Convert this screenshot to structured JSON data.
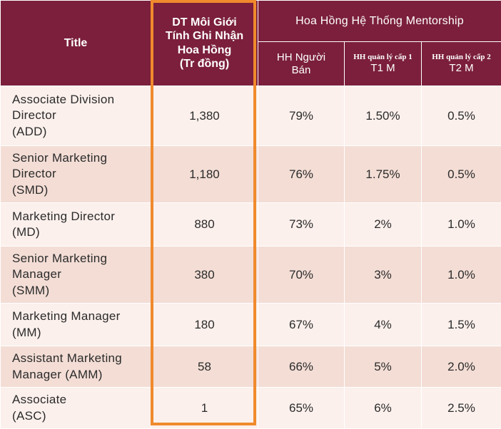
{
  "header": {
    "title": "Title",
    "dt_lines": [
      "DT Môi Giới",
      "Tính Ghi Nhận",
      "Hoa Hồng",
      "(Tr đồng)"
    ],
    "group": "Hoa Hồng Hệ Thống Mentorship",
    "col_seller_lines": [
      "HH Người",
      "Bán"
    ],
    "col_t1_small": "HH quản lý cấp 1",
    "col_t1": "T1 M",
    "col_t2_small": "HH quản lý cấp 2",
    "col_t2": "T2 M"
  },
  "rows": [
    {
      "name_lines": [
        "Associate Division",
        "Director",
        "(ADD)"
      ],
      "dt": "1,380",
      "seller": "79%",
      "t1": "1.50%",
      "t2": "0.5%"
    },
    {
      "name_lines": [
        "Senior Marketing",
        "Director",
        "(SMD)"
      ],
      "dt": "1,180",
      "seller": "76%",
      "t1": "1.75%",
      "t2": "0.5%"
    },
    {
      "name_lines": [
        "Marketing Director",
        "(MD)"
      ],
      "dt": "880",
      "seller": "73%",
      "t1": "2%",
      "t2": "1.0%"
    },
    {
      "name_lines": [
        "Senior Marketing",
        "Manager",
        "(SMM)"
      ],
      "dt": "380",
      "seller": "70%",
      "t1": "3%",
      "t2": "1.0%"
    },
    {
      "name_lines": [
        "Marketing Manager",
        "(MM)"
      ],
      "dt": "180",
      "seller": "67%",
      "t1": "4%",
      "t2": "1.5%"
    },
    {
      "name_lines": [
        "Assistant Marketing",
        "Manager (AMM)"
      ],
      "dt": "58",
      "seller": "66%",
      "t1": "5%",
      "t2": "2.0%"
    },
    {
      "name_lines": [
        "Associate",
        "(ASC)"
      ],
      "dt": "1",
      "seller": "65%",
      "t1": "6%",
      "t2": "2.5%"
    }
  ],
  "colors": {
    "header_bg": "#7b1f3c",
    "row_light": "#fbf0ec",
    "row_dark": "#f3ddd5",
    "highlight": "#f08a2c"
  }
}
